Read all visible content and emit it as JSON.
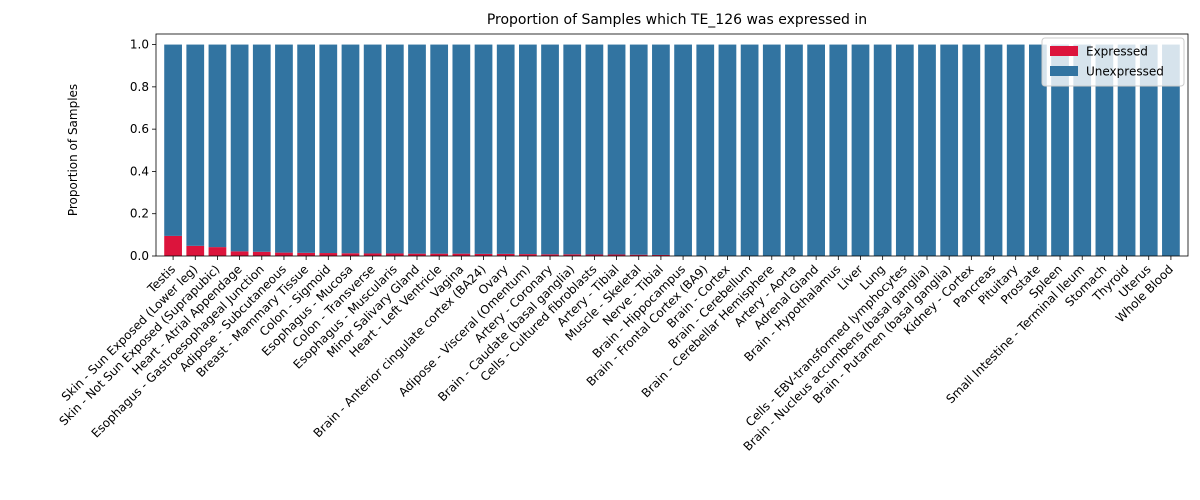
{
  "chart_data": {
    "type": "bar",
    "stacked": true,
    "title": "Proportion of Samples which TE_126 was expressed in",
    "xlabel": "",
    "ylabel": "Proportion of Samples",
    "ylim": [
      0,
      1.05
    ],
    "yticks": [
      "0.0",
      "0.2",
      "0.4",
      "0.6",
      "0.8",
      "1.0"
    ],
    "ytick_values": [
      0,
      0.2,
      0.4,
      0.6,
      0.8,
      1.0
    ],
    "legend_position": "top-right",
    "categories": [
      "Testis",
      "Skin - Sun Exposed (Lower leg)",
      "Skin - Not Sun Exposed (Suprapubic)",
      "Heart - Atrial Appendage",
      "Esophagus - Gastroesophageal Junction",
      "Adipose - Subcutaneous",
      "Breast - Mammary Tissue",
      "Colon - Sigmoid",
      "Esophagus - Mucosa",
      "Colon - Transverse",
      "Esophagus - Muscularis",
      "Minor Salivary Gland",
      "Heart - Left Ventricle",
      "Vagina",
      "Brain - Anterior cingulate cortex (BA24)",
      "Ovary",
      "Adipose - Visceral (Omentum)",
      "Artery - Coronary",
      "Brain - Caudate (basal ganglia)",
      "Cells - Cultured fibroblasts",
      "Artery - Tibial",
      "Muscle - Skeletal",
      "Nerve - Tibial",
      "Brain - Hippocampus",
      "Brain - Frontal Cortex (BA9)",
      "Brain - Cortex",
      "Brain - Cerebellum",
      "Brain - Cerebellar Hemisphere",
      "Artery - Aorta",
      "Adrenal Gland",
      "Brain - Hypothalamus",
      "Liver",
      "Lung",
      "Cells - EBV-transformed lymphocytes",
      "Brain - Nucleus accumbens (basal ganglia)",
      "Brain - Putamen (basal ganglia)",
      "Kidney - Cortex",
      "Pancreas",
      "Pituitary",
      "Prostate",
      "Spleen",
      "Small Intestine - Terminal Ileum",
      "Stomach",
      "Thyroid",
      "Uterus",
      "Whole Blood"
    ],
    "series": [
      {
        "name": "Expressed",
        "color": "#dc143c",
        "values": [
          0.095,
          0.048,
          0.042,
          0.022,
          0.02,
          0.016,
          0.015,
          0.014,
          0.013,
          0.012,
          0.012,
          0.011,
          0.011,
          0.011,
          0.01,
          0.01,
          0.009,
          0.008,
          0.008,
          0.007,
          0.007,
          0.006,
          0.005,
          0,
          0,
          0,
          0,
          0,
          0,
          0,
          0,
          0,
          0,
          0,
          0,
          0,
          0,
          0,
          0,
          0,
          0,
          0,
          0,
          0,
          0,
          0
        ]
      },
      {
        "name": "Unexpressed",
        "color": "#3274a1",
        "values": [
          0.905,
          0.952,
          0.958,
          0.978,
          0.98,
          0.984,
          0.985,
          0.986,
          0.987,
          0.988,
          0.988,
          0.989,
          0.989,
          0.989,
          0.99,
          0.99,
          0.991,
          0.992,
          0.992,
          0.993,
          0.993,
          0.994,
          0.995,
          1,
          1,
          1,
          1,
          1,
          1,
          1,
          1,
          1,
          1,
          1,
          1,
          1,
          1,
          1,
          1,
          1,
          1,
          1,
          1,
          1,
          1,
          1
        ]
      }
    ]
  }
}
